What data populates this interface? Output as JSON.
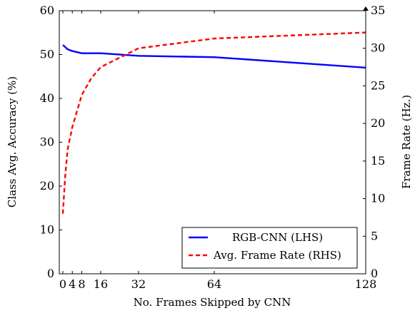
{
  "chart_data": {
    "type": "line",
    "xlabel": "No. Frames Skipped by CNN",
    "ylabel_left": "Class Avg. Accuracy (%)",
    "ylabel_right": "Frame Rate (Hz.)",
    "x_ticks": [
      0,
      4,
      8,
      16,
      32,
      64,
      128
    ],
    "y_left_ticks": [
      0,
      10,
      20,
      30,
      40,
      50,
      60
    ],
    "y_right_ticks": [
      0,
      5,
      10,
      15,
      20,
      25,
      30,
      35
    ],
    "xlim": [
      -1.5,
      128
    ],
    "ylim_left": [
      0,
      60
    ],
    "ylim_right": [
      0,
      35
    ],
    "legend_position": "lower-right",
    "series": [
      {
        "name": "RGB-CNN (LHS)",
        "axis": "left",
        "color": "#0000ff",
        "style": "solid",
        "x": [
          0,
          1,
          2,
          4,
          8,
          16,
          32,
          64,
          128
        ],
        "y": [
          52.2,
          51.7,
          51.2,
          50.8,
          50.3,
          50.3,
          49.7,
          49.4,
          47.0
        ]
      },
      {
        "name": "Avg. Frame Rate (RHS)",
        "axis": "right",
        "color": "#ff0000",
        "style": "dashed",
        "x": [
          0,
          1,
          2,
          4,
          8,
          12,
          16,
          32,
          64,
          128
        ],
        "y": [
          8.0,
          13.0,
          16.5,
          19.5,
          23.8,
          26.0,
          27.5,
          30.0,
          31.3,
          32.1
        ]
      }
    ]
  }
}
